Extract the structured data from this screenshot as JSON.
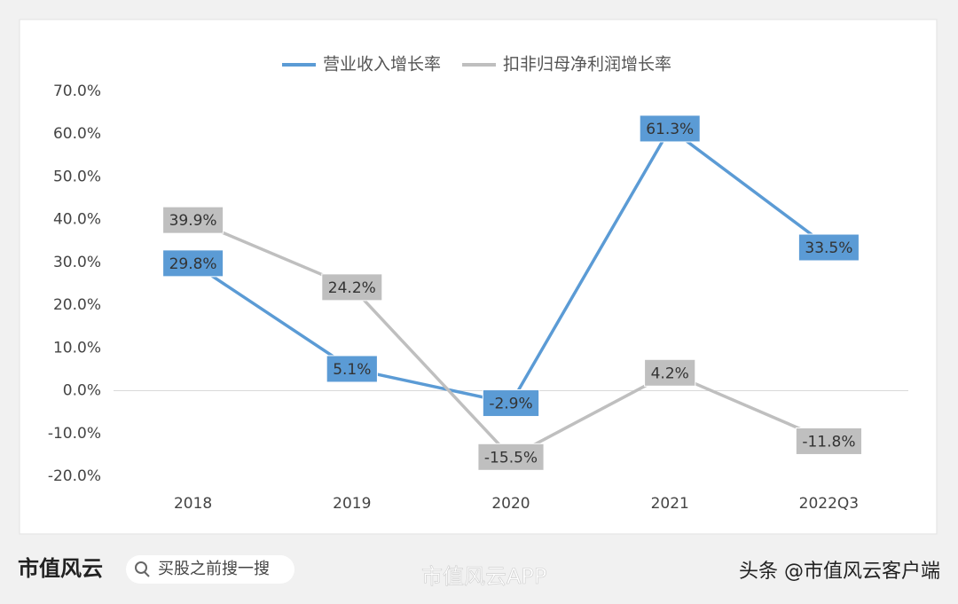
{
  "chart_data": {
    "type": "line",
    "categories": [
      "2018",
      "2019",
      "2020",
      "2021",
      "2022Q3"
    ],
    "series": [
      {
        "name": "营业收入增长率",
        "color": "#5b9bd5",
        "values": [
          29.8,
          5.1,
          -2.9,
          61.3,
          33.5
        ],
        "value_labels": [
          "29.8%",
          "5.1%",
          "-2.9%",
          "61.3%",
          "33.5%"
        ]
      },
      {
        "name": "扣非归母净利润增长率",
        "color": "#bfbfbf",
        "values": [
          39.9,
          24.2,
          -15.5,
          4.2,
          -11.8
        ],
        "value_labels": [
          "39.9%",
          "24.2%",
          "-15.5%",
          "4.2%",
          "-11.8%"
        ]
      }
    ],
    "ylim": [
      -20,
      70
    ],
    "yticks": [
      {
        "value": -20,
        "label": "-20.0%"
      },
      {
        "value": -10,
        "label": "-10.0%"
      },
      {
        "value": 0,
        "label": "0.0%"
      },
      {
        "value": 10,
        "label": "10.0%"
      },
      {
        "value": 20,
        "label": "20.0%"
      },
      {
        "value": 30,
        "label": "30.0%"
      },
      {
        "value": 40,
        "label": "40.0%"
      },
      {
        "value": 50,
        "label": "50.0%"
      },
      {
        "value": 60,
        "label": "60.0%"
      },
      {
        "value": 70,
        "label": "70.0%"
      }
    ],
    "legend": "top"
  },
  "footer": {
    "logo": "市值风云",
    "search": "买股之前搜一搜",
    "watermark": "市值风云APP",
    "source": "头条 @市值风云客户端"
  }
}
